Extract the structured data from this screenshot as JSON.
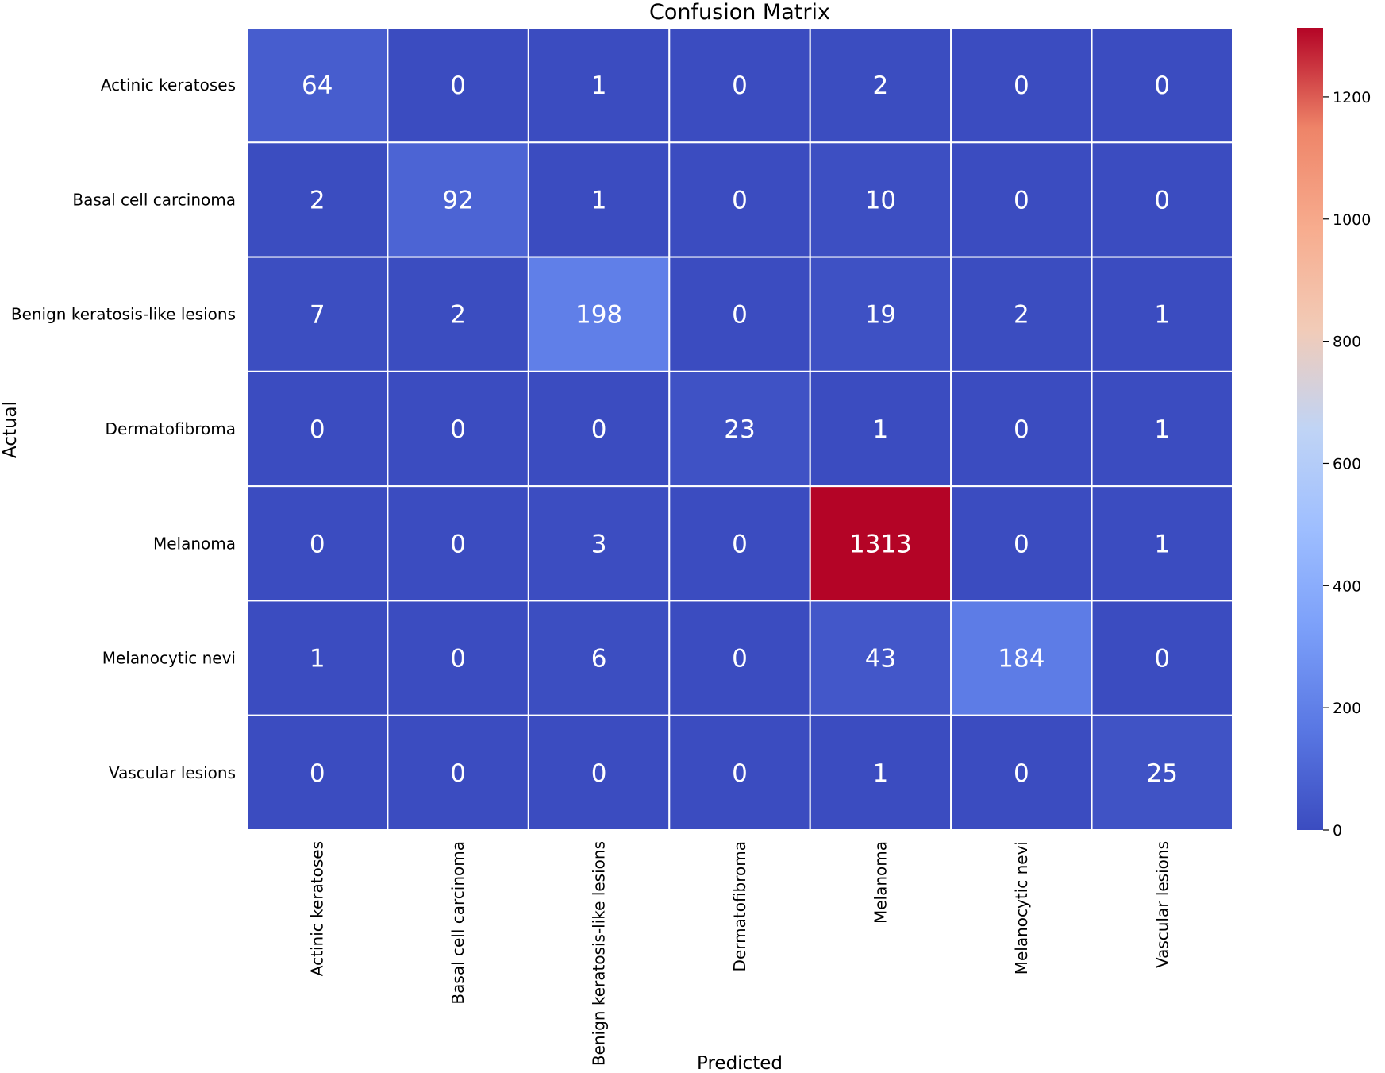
{
  "chart_data": {
    "type": "heatmap",
    "title": "Confusion Matrix",
    "xlabel": "Predicted",
    "ylabel": "Actual",
    "row_labels": [
      "Actinic keratoses",
      "Basal cell carcinoma",
      "Benign keratosis-like lesions",
      "Dermatofibroma",
      "Melanoma",
      "Melanocytic nevi",
      "Vascular lesions"
    ],
    "col_labels": [
      "Actinic keratoses",
      "Basal cell carcinoma",
      "Benign keratosis-like lesions",
      "Dermatofibroma",
      "Melanoma",
      "Melanocytic nevi",
      "Vascular lesions"
    ],
    "values": [
      [
        64,
        0,
        1,
        0,
        2,
        0,
        0
      ],
      [
        2,
        92,
        1,
        0,
        10,
        0,
        0
      ],
      [
        7,
        2,
        198,
        0,
        19,
        2,
        1
      ],
      [
        0,
        0,
        0,
        23,
        1,
        0,
        1
      ],
      [
        0,
        0,
        3,
        0,
        1313,
        0,
        1
      ],
      [
        1,
        0,
        6,
        0,
        43,
        184,
        0
      ],
      [
        0,
        0,
        0,
        0,
        1,
        0,
        25
      ]
    ],
    "colormap": "coolwarm",
    "vmin": 0,
    "vmax": 1313,
    "colorbar_ticks": [
      0,
      200,
      400,
      600,
      800,
      1000,
      1200
    ],
    "grid": true
  }
}
